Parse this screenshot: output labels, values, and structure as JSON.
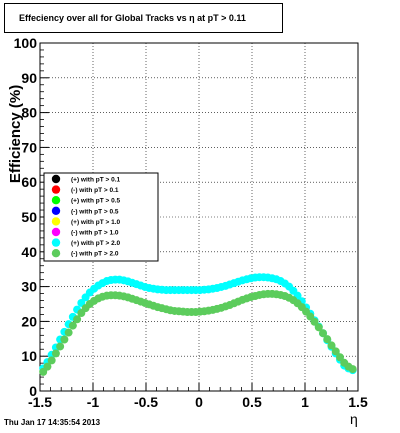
{
  "title": "Effeciency over all for Global Tracks vs    η at pT > 0.11",
  "footer": "Thu Jan 17 14:35:54 2013",
  "chart_data": {
    "type": "scatter",
    "title": "Effeciency over all for Global Tracks vs    η at pT > 0.11",
    "xlabel": "η",
    "ylabel": "Efficiency (%)",
    "xlim": [
      -1.5,
      1.5
    ],
    "ylim": [
      0,
      100
    ],
    "xticks": [
      "-1.5",
      "-1",
      "-0.5",
      "0",
      "0.5",
      "1",
      "1.5"
    ],
    "yticks": [
      "0",
      "10",
      "20",
      "30",
      "40",
      "50",
      "60",
      "70",
      "80",
      "90",
      "100"
    ],
    "grid": true,
    "legend_position": "center-left",
    "x": [
      -1.47,
      -1.43,
      -1.39,
      -1.35,
      -1.31,
      -1.27,
      -1.23,
      -1.19,
      -1.15,
      -1.11,
      -1.07,
      -1.03,
      -0.99,
      -0.95,
      -0.91,
      -0.87,
      -0.83,
      -0.79,
      -0.75,
      -0.71,
      -0.67,
      -0.63,
      -0.59,
      -0.55,
      -0.51,
      -0.47,
      -0.43,
      -0.39,
      -0.35,
      -0.31,
      -0.27,
      -0.23,
      -0.19,
      -0.15,
      -0.11,
      -0.07,
      -0.03,
      0.01,
      0.05,
      0.09,
      0.13,
      0.17,
      0.21,
      0.25,
      0.29,
      0.33,
      0.37,
      0.41,
      0.45,
      0.49,
      0.53,
      0.57,
      0.61,
      0.65,
      0.69,
      0.73,
      0.77,
      0.81,
      0.85,
      0.89,
      0.93,
      0.97,
      1.01,
      1.05,
      1.09,
      1.13,
      1.17,
      1.21,
      1.25,
      1.29,
      1.33,
      1.37,
      1.41,
      1.45
    ],
    "series": [
      {
        "name": "(+) with pT > 0.1",
        "color": "#000000",
        "values": []
      },
      {
        "name": "(-) with pT > 0.1",
        "color": "#ff0000",
        "values": []
      },
      {
        "name": "(+) with pT > 0.5",
        "color": "#00ff00",
        "values": []
      },
      {
        "name": "(-) with pT > 0.5",
        "color": "#0000ff",
        "values": []
      },
      {
        "name": "(+) with pT > 1.0",
        "color": "#ffff00",
        "values": []
      },
      {
        "name": "(-) with pT > 1.0",
        "color": "#ff00ff",
        "values": []
      },
      {
        "name": "(+) with pT > 2.0",
        "color": "#00ffff",
        "values": [
          6.5,
          8.3,
          10.4,
          12.5,
          14.8,
          17.0,
          19.2,
          21.3,
          23.4,
          25.3,
          26.9,
          28.3,
          29.4,
          30.3,
          31.0,
          31.6,
          31.9,
          32.0,
          32.0,
          31.8,
          31.5,
          31.1,
          30.7,
          30.3,
          29.9,
          29.6,
          29.4,
          29.2,
          29.1,
          29.0,
          29.0,
          29.0,
          29.0,
          29.0,
          29.0,
          29.0,
          29.0,
          29.0,
          29.1,
          29.2,
          29.4,
          29.6,
          29.9,
          30.2,
          30.6,
          31.0,
          31.4,
          31.8,
          32.1,
          32.4,
          32.6,
          32.7,
          32.7,
          32.6,
          32.4,
          32.1,
          31.6,
          30.9,
          30.0,
          28.8,
          27.4,
          25.8,
          24.0,
          22.2,
          20.3,
          18.5,
          16.6,
          14.6,
          12.7,
          10.8,
          9.0,
          7.3,
          6.5,
          6.0
        ]
      },
      {
        "name": "(-) with pT > 2.0",
        "color": "#5ccc5c",
        "values": [
          5.5,
          7.0,
          8.8,
          10.8,
          12.8,
          14.8,
          16.8,
          18.8,
          20.6,
          22.4,
          23.8,
          25.0,
          25.9,
          26.6,
          27.1,
          27.4,
          27.5,
          27.5,
          27.4,
          27.2,
          26.9,
          26.5,
          26.1,
          25.7,
          25.3,
          24.9,
          24.5,
          24.1,
          23.8,
          23.5,
          23.2,
          23.0,
          22.9,
          22.8,
          22.7,
          22.7,
          22.7,
          22.8,
          22.9,
          23.1,
          23.3,
          23.6,
          23.9,
          24.3,
          24.7,
          25.2,
          25.7,
          26.2,
          26.6,
          27.0,
          27.3,
          27.6,
          27.8,
          27.9,
          27.9,
          27.8,
          27.6,
          27.3,
          26.8,
          26.1,
          25.2,
          24.1,
          22.8,
          21.4,
          19.9,
          18.3,
          16.6,
          14.9,
          13.1,
          11.4,
          9.7,
          8.1,
          7.0,
          6.3
        ]
      }
    ]
  }
}
